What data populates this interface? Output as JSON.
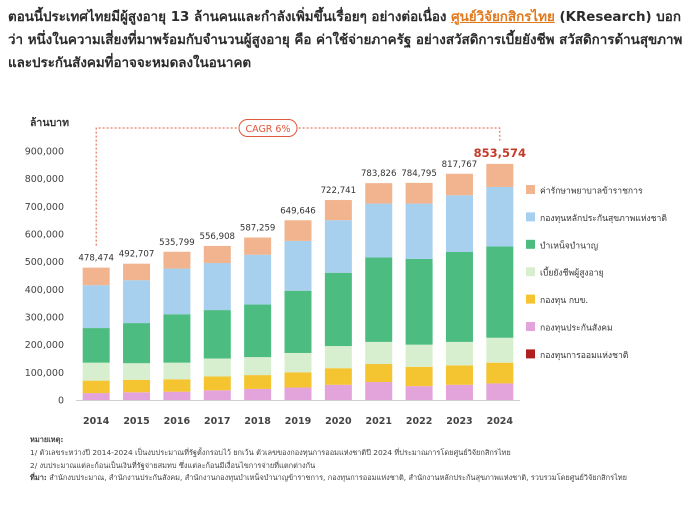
{
  "intro": {
    "part1": "ตอนนี้ประเทศไทยมีผู้สูงอายุ 13 ล้านคนและกำลังเพิ่มขึ้นเรื่อยๆ อย่างต่อเนื่อง ",
    "link": "ศูนย์วิจัยกสิกรไทย",
    "part2": " (KResearch) บอกว่า หนึ่งในความเสี่ยงที่มาพร้อมกับจำนวนผู้สูงอายุ คือ ค่าใช้จ่ายภาครัฐ อย่างสวัสดิการเบี้ยยังชีพ สวัสดิการด้านสุขภาพ และประกันสังคมที่อาจจะหมดลงในอนาคต"
  },
  "colors": {
    "c_civil": "#f2b48e",
    "c_uhc": "#a7cfee",
    "c_pension": "#4cbc80",
    "c_elderly": "#d8efcf",
    "c_gpf": "#f5c431",
    "c_sso": "#e3a4dc",
    "c_nsf": "#b01e1e",
    "cagr": "#e0573b",
    "last_total": "#c43b2b"
  },
  "chart_data": {
    "type": "bar",
    "stacked": true,
    "ylabel": "ล้านบาท",
    "ylim": [
      0,
      900000
    ],
    "yticks": [
      0,
      100000,
      200000,
      300000,
      400000,
      500000,
      600000,
      700000,
      800000,
      900000
    ],
    "ytick_labels": [
      "0",
      "100,000",
      "200,000",
      "300,000",
      "400,000",
      "500,000",
      "600,000",
      "700,000",
      "800,000",
      "900,000"
    ],
    "categories": [
      "2014",
      "2015",
      "2016",
      "2017",
      "2018",
      "2019",
      "2020",
      "2021",
      "2022",
      "2023",
      "2024"
    ],
    "totals": [
      478474,
      492707,
      535799,
      556908,
      587259,
      649646,
      722741,
      783826,
      784795,
      817767,
      853574
    ],
    "total_labels": [
      "478,474",
      "492,707",
      "535,799",
      "556,908",
      "587,259",
      "649,646",
      "722,741",
      "783,826",
      "784,795",
      "817,767",
      "853,574"
    ],
    "annotation": "CAGR 6%",
    "legend_position": "right",
    "series": [
      {
        "name": "กองทุนการออมแห่งชาติ",
        "color_key": "c_nsf",
        "values": [
          0,
          0,
          0,
          0,
          0,
          0,
          0,
          0,
          0,
          0,
          0
        ]
      },
      {
        "name": "กองทุนประกันสังคม",
        "color_key": "c_sso",
        "values": [
          25000,
          28000,
          30000,
          35000,
          40000,
          45000,
          55000,
          65000,
          50000,
          55000,
          60000
        ]
      },
      {
        "name": "กองทุน กบข.",
        "color_key": "c_gpf",
        "values": [
          45000,
          45000,
          45000,
          50000,
          50000,
          55000,
          60000,
          65000,
          70000,
          70000,
          75000
        ]
      },
      {
        "name": "เบี้ยยังชีพผู้สูงอายุ",
        "color_key": "c_elderly",
        "values": [
          65000,
          60000,
          60000,
          65000,
          65000,
          70000,
          80000,
          80000,
          80000,
          85000,
          90000
        ]
      },
      {
        "name": "บำเหน็จบำนาญ",
        "color_key": "c_pension",
        "values": [
          125000,
          145000,
          175000,
          175000,
          190000,
          225000,
          265000,
          305000,
          310000,
          325000,
          330000
        ]
      },
      {
        "name": "กองทุนหลักประกันสุขภาพแห่งชาติ",
        "color_key": "c_uhc",
        "values": [
          155000,
          155000,
          165000,
          170000,
          180000,
          180000,
          190000,
          195000,
          200000,
          205000,
          215000
        ]
      },
      {
        "name": "ค่ารักษาพยาบาลข้าราชการ",
        "color_key": "c_civil",
        "values": [
          63474,
          59707,
          60799,
          61908,
          62259,
          74646,
          72741,
          73826,
          74795,
          77767,
          83574
        ]
      }
    ],
    "legend_order": [
      "ค่ารักษาพยาบาลข้าราชการ",
      "กองทุนหลักประกันสุขภาพแห่งชาติ",
      "บำเหน็จบำนาญ",
      "เบี้ยยังชีพผู้สูงอายุ",
      "กองทุน กบข.",
      "กองทุนประกันสังคม",
      "กองทุนการออมแห่งชาติ"
    ]
  },
  "notes": {
    "heading": "หมายเหตุ:",
    "note1": "1/ ตัวเลขระหว่างปี 2014-2024 เป็นงบประมาณที่รัฐตั้งกรอบไว้ ยกเว้น ตัวเลขของกองทุนการออมแห่งชาติปี 2024 ที่ประมาณการโดยศูนย์วิจัยกสิกรไทย",
    "note2": "2/ งบประมาณแต่ละก้อนเป็นเงินที่รัฐจ่ายสมทบ ซึ่งแต่ละก้อนมีเงื่อนไขการจ่ายที่แตกต่างกัน",
    "source_label": "ที่มา:",
    "source": "สำนักงบประมาณ, สำนักงานประกันสังคม, สำนักงานกองทุนบำเหน็จบำนาญข้าราชการ, กองทุนการออมแห่งชาติ, สำนักงานหลักประกันสุขภาพแห่งชาติ, รวบรวมโดยศูนย์วิจัยกสิกรไทย"
  }
}
